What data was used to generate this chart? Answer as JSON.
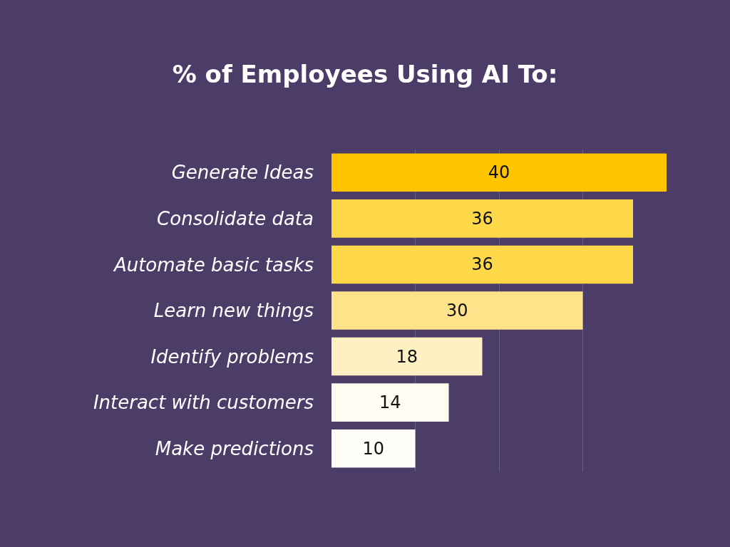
{
  "chart_data": {
    "type": "bar",
    "title": "% of Employees Using AI To:",
    "orientation": "horizontal",
    "categories": [
      "Generate Ideas",
      "Consolidate data",
      "Automate basic tasks",
      "Learn new things",
      "Identify problems",
      "Interact with customers",
      "Make predictions"
    ],
    "values": [
      40,
      36,
      36,
      30,
      18,
      14,
      10
    ],
    "colors": [
      "#ffc400",
      "#ffd84a",
      "#ffd84a",
      "#ffe38a",
      "#fff0c4",
      "#fffcf2",
      "#fffdf7"
    ],
    "xlim": [
      0,
      40
    ],
    "xticks": [
      {
        "value": 10,
        "label": null
      },
      {
        "value": 20,
        "label": null
      },
      {
        "value": 30,
        "label": null
      }
    ],
    "grid": "x",
    "tick_labels": "y",
    "data_labels": true
  }
}
